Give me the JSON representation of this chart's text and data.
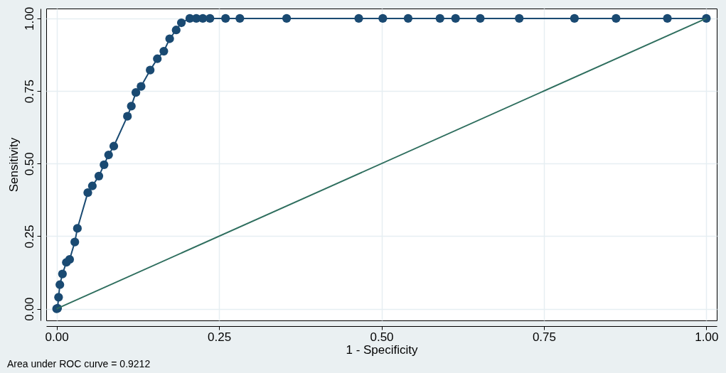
{
  "chart_data": {
    "type": "line",
    "xlabel": "1 - Specificity",
    "ylabel": "Sensitivity",
    "annotations": [
      "Area under ROC curve = 0.9212"
    ],
    "xlim": [
      -0.016,
      1.016
    ],
    "ylim": [
      -0.04,
      1.034
    ],
    "xticks": [
      {
        "value": 0,
        "label": "0.00"
      },
      {
        "value": 0.25,
        "label": "0.25"
      },
      {
        "value": 0.5,
        "label": "0.50"
      },
      {
        "value": 0.75,
        "label": "0.75"
      },
      {
        "value": 1,
        "label": "1.00"
      }
    ],
    "yticks": [
      {
        "value": 0,
        "label": "0.00"
      },
      {
        "value": 0.25,
        "label": "0.25"
      },
      {
        "value": 0.5,
        "label": "0.50"
      },
      {
        "value": 0.75,
        "label": "0.75"
      },
      {
        "value": 1,
        "label": "1.00"
      }
    ],
    "grid": true,
    "marker": "circle",
    "line_style": "solid",
    "series": [
      {
        "color": "#1a4a72",
        "x": [
          0,
          0.0015,
          0.003,
          0.005,
          0.009,
          0.015,
          0.02,
          0.028,
          0.032,
          0.048,
          0.055,
          0.065,
          0.073,
          0.08,
          0.088,
          0.109,
          0.115,
          0.122,
          0.13,
          0.144,
          0.155,
          0.165,
          0.174,
          0.184,
          0.192,
          0.205,
          0.215,
          0.225,
          0.236,
          0.26,
          0.282,
          0.354,
          0.465,
          0.502,
          0.541,
          0.59,
          0.614,
          0.652,
          0.712,
          0.797,
          0.861,
          0.94,
          1
        ],
        "values": [
          0,
          0.002,
          0.04,
          0.083,
          0.12,
          0.16,
          0.17,
          0.23,
          0.277,
          0.4,
          0.423,
          0.457,
          0.496,
          0.53,
          0.56,
          0.663,
          0.698,
          0.745,
          0.766,
          0.822,
          0.861,
          0.887,
          0.93,
          0.96,
          0.985,
          1,
          1,
          1,
          1,
          1,
          1,
          1,
          1,
          1,
          1,
          1,
          1,
          1,
          1,
          1,
          1,
          1,
          1
        ]
      },
      {
        "type": "line",
        "marker": "none",
        "color": "#2e6e5e",
        "x": [
          0,
          1
        ],
        "values": [
          0,
          1
        ]
      }
    ]
  }
}
